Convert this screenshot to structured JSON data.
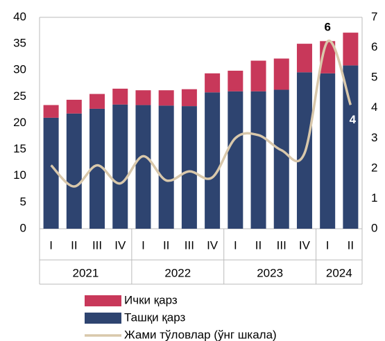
{
  "chart_data": {
    "type": "stacked_bar_line",
    "categories": [
      "I",
      "II",
      "III",
      "IV",
      "I",
      "II",
      "III",
      "IV",
      "I",
      "II",
      "III",
      "IV",
      "I",
      "II"
    ],
    "year_groups": [
      {
        "label": "2021",
        "count": 4
      },
      {
        "label": "2022",
        "count": 4
      },
      {
        "label": "2023",
        "count": 4
      },
      {
        "label": "2024",
        "count": 2
      }
    ],
    "series": [
      {
        "name": "Ташқи қарз",
        "color": "#2e4470",
        "values": [
          21.0,
          21.8,
          22.7,
          23.5,
          23.4,
          23.3,
          23.2,
          25.8,
          26.0,
          26.0,
          26.3,
          29.6,
          29.4,
          30.9
        ]
      },
      {
        "name": "Ички қарз",
        "color": "#c8385a",
        "values": [
          2.4,
          2.6,
          2.8,
          3.0,
          2.8,
          2.9,
          3.2,
          3.6,
          3.9,
          5.8,
          5.9,
          5.4,
          6.1,
          6.2
        ]
      },
      {
        "name": "Жами тўловлар (ўнг шкала)",
        "color": "#d9c8ab",
        "axis": "y2",
        "type": "line",
        "values": [
          2.1,
          1.4,
          2.1,
          1.5,
          2.4,
          1.6,
          1.9,
          1.7,
          3.0,
          3.1,
          2.6,
          2.5,
          6.2,
          4.1
        ],
        "value_labels": [
          null,
          null,
          null,
          null,
          null,
          null,
          null,
          null,
          null,
          null,
          null,
          null,
          "6",
          "4"
        ]
      }
    ],
    "ylim": [
      0,
      40
    ],
    "yticks": [
      0,
      5,
      10,
      15,
      20,
      25,
      30,
      35,
      40
    ],
    "y2lim": [
      0,
      7
    ],
    "y2ticks": [
      0,
      1,
      2,
      3,
      4,
      5,
      6,
      7
    ],
    "legend_order": [
      1,
      0,
      2
    ]
  }
}
